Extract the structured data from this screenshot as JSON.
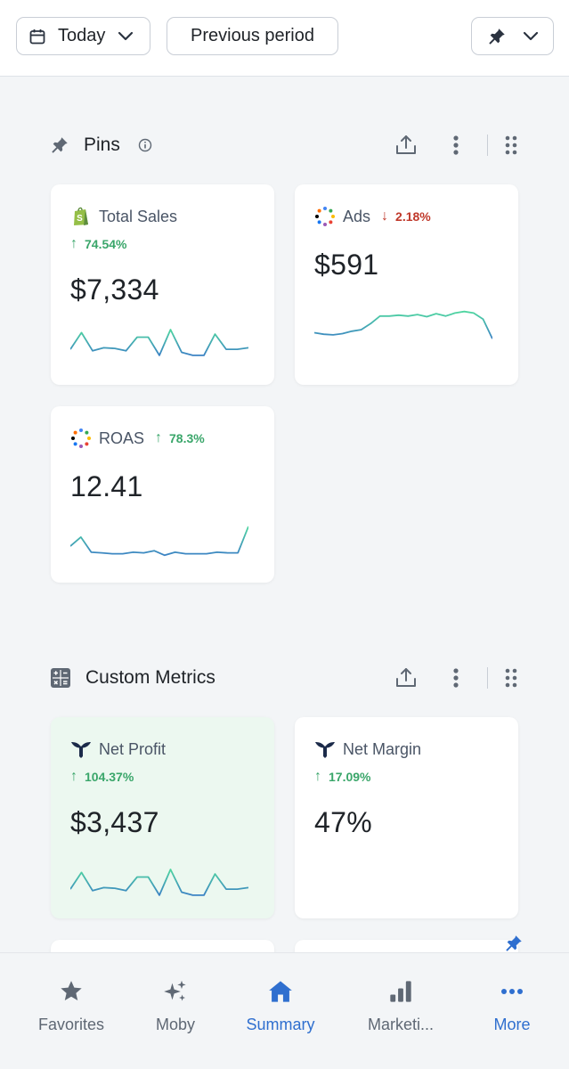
{
  "topbar": {
    "date_label": "Today",
    "compare_label": "Previous period"
  },
  "pins_section": {
    "title": "Pins",
    "cards": [
      {
        "title": "Total Sales",
        "delta": "74.54%",
        "delta_dir": "up",
        "value": "$7,334",
        "spark": [
          0.35,
          0.9,
          0.3,
          0.4,
          0.38,
          0.3,
          0.75,
          0.75,
          0.15,
          1.0,
          0.25,
          0.15,
          0.15,
          0.85,
          0.35,
          0.35,
          0.4
        ]
      },
      {
        "title": "Ads",
        "delta": "2.18%",
        "delta_dir": "down",
        "value": "$591",
        "spark": [
          0.25,
          0.2,
          0.18,
          0.22,
          0.3,
          0.35,
          0.55,
          0.8,
          0.8,
          0.83,
          0.8,
          0.85,
          0.78,
          0.88,
          0.8,
          0.9,
          0.95,
          0.9,
          0.7,
          0.05
        ]
      },
      {
        "title": "ROAS",
        "delta": "78.3%",
        "delta_dir": "up",
        "value": "12.41",
        "spark": [
          0.35,
          0.65,
          0.15,
          0.13,
          0.1,
          0.1,
          0.15,
          0.13,
          0.2,
          0.05,
          0.15,
          0.1,
          0.1,
          0.1,
          0.15,
          0.13,
          0.13,
          1.0
        ]
      }
    ]
  },
  "custom_section": {
    "title": "Custom Metrics",
    "cards": [
      {
        "title": "Net Profit",
        "delta": "104.37%",
        "delta_dir": "up",
        "value": "$3,437",
        "spark": [
          0.35,
          0.9,
          0.3,
          0.4,
          0.38,
          0.3,
          0.75,
          0.75,
          0.15,
          1.0,
          0.25,
          0.15,
          0.15,
          0.85,
          0.35,
          0.35,
          0.4
        ]
      },
      {
        "title": "Net Margin",
        "delta": "17.09%",
        "delta_dir": "up",
        "value": "47%"
      }
    ]
  },
  "nav": {
    "items": [
      {
        "label": "Favorites",
        "icon": "star-icon"
      },
      {
        "label": "Moby",
        "icon": "sparkles-icon"
      },
      {
        "label": "Summary",
        "icon": "home-icon"
      },
      {
        "label": "Marketi...",
        "icon": "bar-chart-icon"
      },
      {
        "label": "More",
        "icon": "more-dots-icon"
      }
    ]
  },
  "colors": {
    "accent": "#2f6fcf",
    "up": "#3aa66a",
    "down": "#c0392b",
    "spark_start": "#3b82c4",
    "spark_end": "#4fd6a0"
  }
}
